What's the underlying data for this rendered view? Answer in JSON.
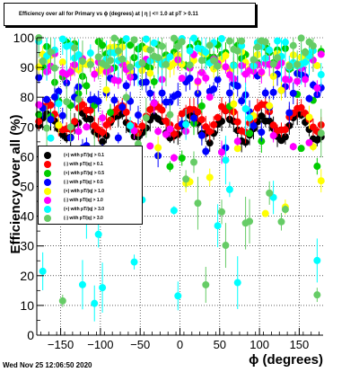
{
  "title": "Efficiency over all for Primary vs ϕ (degrees) at | η | <= 1.0 at pT > 0.11",
  "footer": "Wed Nov 25 12:06:50 2020",
  "chart_data": {
    "type": "scatter",
    "xlabel": "ϕ (degrees)",
    "ylabel": "Efficiency over all (%)",
    "xlim": [
      -180,
      180
    ],
    "ylim": [
      0,
      100
    ],
    "x_ticks": [
      -150,
      -100,
      -50,
      0,
      50,
      100,
      150
    ],
    "y_ticks": [
      0,
      10,
      20,
      30,
      40,
      50,
      60,
      70,
      80,
      90,
      100
    ],
    "grid": true,
    "legend_position": "middle-left",
    "series": [
      {
        "name": "(+) with pT/|q| > 0.1",
        "color": "#000000",
        "band": [
          65,
          75
        ],
        "amp": 4
      },
      {
        "name": "(-) with pT/|q| > 0.1",
        "color": "#ff0000",
        "band": [
          70,
          76
        ],
        "amp": 4
      },
      {
        "name": "(+) with pT/|q| > 0.5",
        "color": "#00cc00",
        "band": [
          56,
          99
        ],
        "amp": 3
      },
      {
        "name": "(-) with pT/|q| > 0.5",
        "color": "#0000ff",
        "band": [
          60,
          88
        ],
        "amp": 3
      },
      {
        "name": "(+) with pT/|q| > 1.0",
        "color": "#ffff00",
        "band": [
          40,
          97
        ],
        "amp": 3
      },
      {
        "name": "(-) with pT/|q| > 1.0",
        "color": "#ff00ff",
        "band": [
          48,
          95
        ],
        "amp": 3
      },
      {
        "name": "(+) with pT/|q| > 3.0",
        "color": "#00ffff",
        "band": [
          10,
          100
        ],
        "amp": 2
      },
      {
        "name": "(-) with pT/|q| > 3.0",
        "color": "#66cc66",
        "band": [
          10,
          100
        ],
        "amp": 2
      }
    ]
  }
}
